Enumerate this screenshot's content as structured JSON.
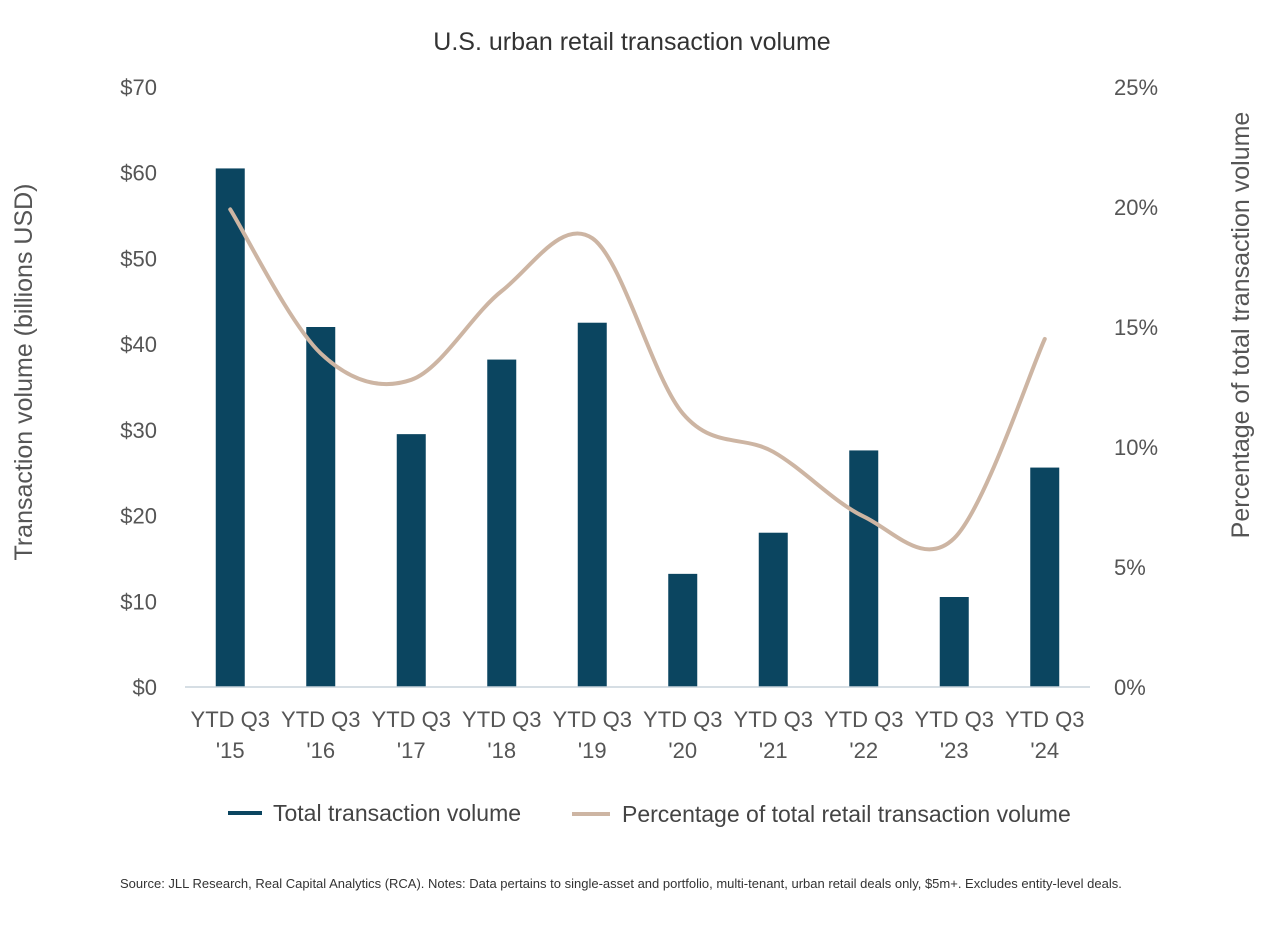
{
  "chart_data": {
    "type": "bar",
    "title": "U.S. urban retail transaction volume",
    "categories": [
      [
        "YTD Q3",
        "'15"
      ],
      [
        "YTD Q3",
        "'16"
      ],
      [
        "YTD Q3",
        "'17"
      ],
      [
        "YTD Q3",
        "'18"
      ],
      [
        "YTD Q3",
        "'19"
      ],
      [
        "YTD Q3",
        "'20"
      ],
      [
        "YTD Q3",
        "'21"
      ],
      [
        "YTD Q3",
        "'22"
      ],
      [
        "YTD Q3",
        "'23"
      ],
      [
        "YTD Q3",
        "'24"
      ]
    ],
    "ylabel": "Transaction volume (billions USD)",
    "y2label": "Percentage of total transaction volume",
    "ylim": [
      0,
      70
    ],
    "y2lim": [
      0,
      25
    ],
    "yticks": [
      "$0",
      "$10",
      "$20",
      "$30",
      "$40",
      "$50",
      "$60",
      "$70"
    ],
    "y2ticks": [
      "0%",
      "5%",
      "10%",
      "15%",
      "20%",
      "25%"
    ],
    "grid": false,
    "legend_position": "bottom",
    "series": [
      {
        "name": "Total transaction volume",
        "type": "bar",
        "axis": "left",
        "color": "#0b4560",
        "values": [
          60.5,
          42.0,
          29.5,
          38.2,
          42.5,
          13.2,
          18.0,
          27.6,
          10.5,
          25.6
        ]
      },
      {
        "name": "Percentage of total retail transaction volume",
        "type": "line",
        "smooth": true,
        "axis": "right",
        "color": "#cdb5a3",
        "values": [
          19.9,
          13.9,
          12.8,
          16.5,
          18.7,
          11.4,
          9.8,
          7.1,
          6.2,
          14.5
        ]
      }
    ]
  },
  "source": "Source: JLL Research, Real Capital Analytics (RCA). Notes: Data pertains to single-asset and portfolio, multi-tenant, urban retail deals only, $5m+. Excludes entity-level deals."
}
